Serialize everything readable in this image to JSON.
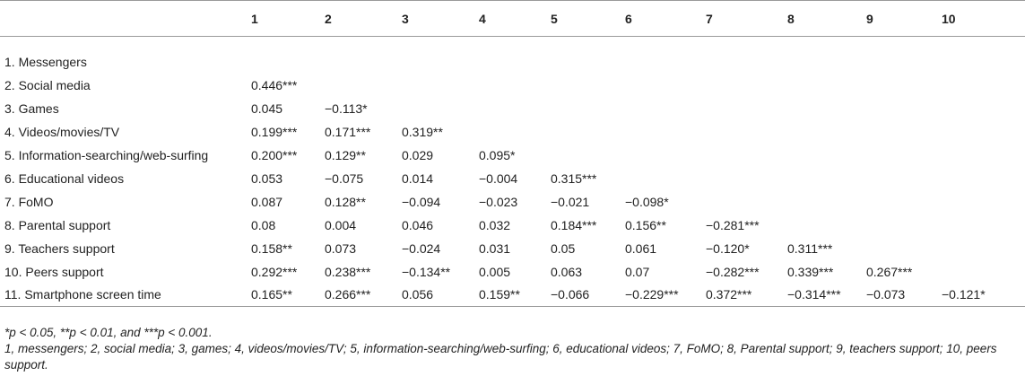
{
  "table": {
    "columns": [
      "",
      "1",
      "2",
      "3",
      "4",
      "5",
      "6",
      "7",
      "8",
      "9",
      "10"
    ],
    "rows": [
      [
        "1. Messengers",
        "",
        "",
        "",
        "",
        "",
        "",
        "",
        "",
        "",
        ""
      ],
      [
        "2. Social media",
        "0.446***",
        "",
        "",
        "",
        "",
        "",
        "",
        "",
        "",
        ""
      ],
      [
        "3. Games",
        "0.045",
        "−0.113*",
        "",
        "",
        "",
        "",
        "",
        "",
        "",
        ""
      ],
      [
        "4. Videos/movies/TV",
        "0.199***",
        "0.171***",
        "0.319**",
        "",
        "",
        "",
        "",
        "",
        "",
        ""
      ],
      [
        "5. Information-searching/web-surfing",
        "0.200***",
        "0.129**",
        "0.029",
        "0.095*",
        "",
        "",
        "",
        "",
        "",
        ""
      ],
      [
        "6. Educational videos",
        "0.053",
        "−0.075",
        "0.014",
        "−0.004",
        "0.315***",
        "",
        "",
        "",
        "",
        ""
      ],
      [
        "7. FoMO",
        "0.087",
        "0.128**",
        "−0.094",
        "−0.023",
        "−0.021",
        "−0.098*",
        "",
        "",
        "",
        ""
      ],
      [
        "8. Parental support",
        "0.08",
        "0.004",
        "0.046",
        "0.032",
        "0.184***",
        "0.156**",
        "−0.281***",
        "",
        "",
        ""
      ],
      [
        "9. Teachers support",
        "0.158**",
        "0.073",
        "−0.024",
        "0.031",
        "0.05",
        "0.061",
        "−0.120*",
        "0.311***",
        "",
        ""
      ],
      [
        "10. Peers support",
        "0.292***",
        "0.238***",
        "−0.134**",
        "0.005",
        "0.063",
        "0.07",
        "−0.282***",
        "0.339***",
        "0.267***",
        ""
      ],
      [
        "11. Smartphone screen time",
        "0.165**",
        "0.266***",
        "0.056",
        "0.159**",
        "−0.066",
        "−0.229***",
        "0.372***",
        "−0.314***",
        "−0.073",
        "−0.121*"
      ]
    ]
  },
  "notes": {
    "significance": "*p < 0.05, **p < 0.01, and ***p < 0.001.",
    "legend": "1, messengers; 2, social media; 3, games; 4, videos/movies/TV; 5, information-searching/web-surfing; 6, educational videos; 7, FoMO; 8, Parental support; 9, teachers support; 10, peers support."
  }
}
